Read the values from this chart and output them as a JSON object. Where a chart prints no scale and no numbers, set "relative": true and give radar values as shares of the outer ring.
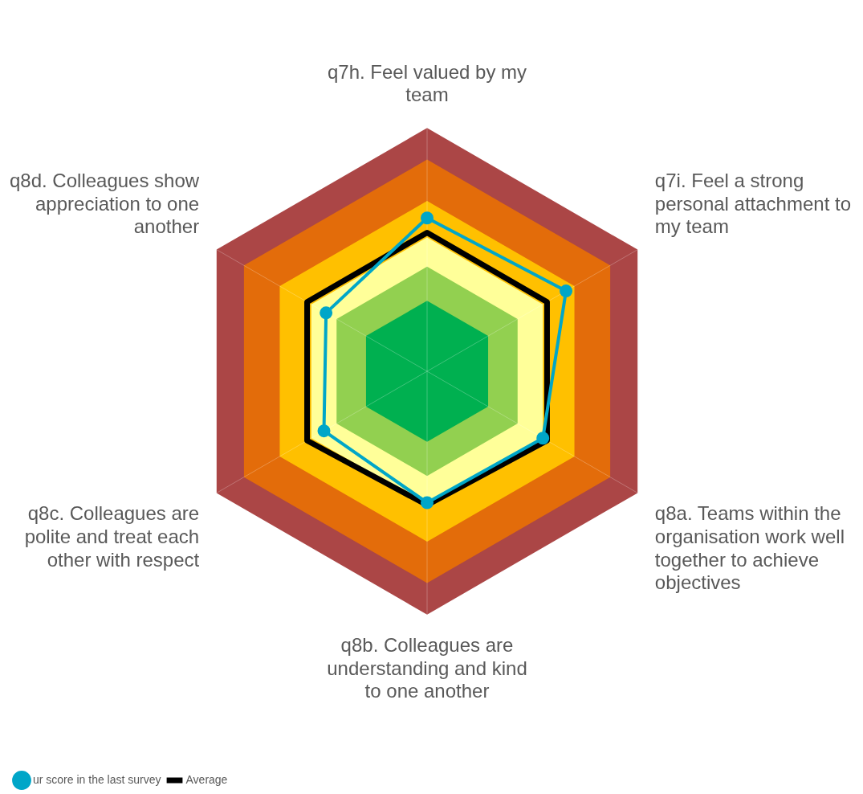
{
  "chart_data": {
    "type": "radar",
    "relative": true,
    "categories": [
      "q7h. Feel valued by my team",
      "q7i. Feel a strong personal attachment to my team",
      "q8a. Teams within the organisation work well together to achieve objectives",
      "q8b. Colleagues are understanding and kind to one another",
      "q8c. Colleagues are polite and treat each other with respect",
      "q8d. Colleagues show appreciation to one another"
    ],
    "series": [
      {
        "name": "Average",
        "color": "#000000",
        "marker": "none",
        "values": [
          0.57,
          0.57,
          0.57,
          0.55,
          0.57,
          0.57
        ]
      },
      {
        "name": "ur score in the last survey",
        "color": "#00a6c8",
        "marker": "circle",
        "values": [
          0.63,
          0.66,
          0.55,
          0.54,
          0.49,
          0.48
        ]
      }
    ],
    "grid": false,
    "legend": "bottom left"
  }
}
